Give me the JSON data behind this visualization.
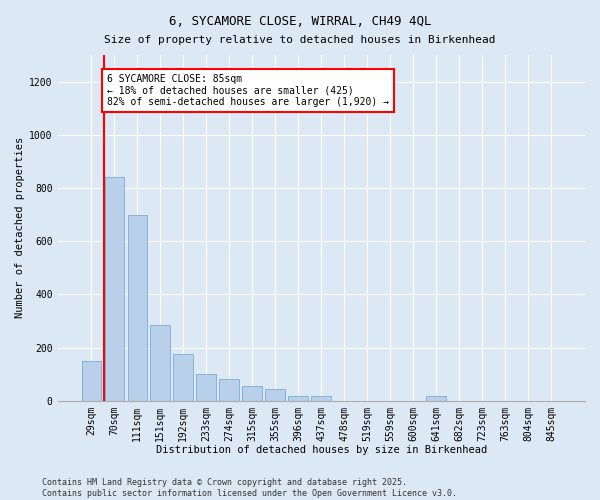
{
  "title": "6, SYCAMORE CLOSE, WIRRAL, CH49 4QL",
  "subtitle": "Size of property relative to detached houses in Birkenhead",
  "xlabel": "Distribution of detached houses by size in Birkenhead",
  "ylabel": "Number of detached properties",
  "categories": [
    "29sqm",
    "70sqm",
    "111sqm",
    "151sqm",
    "192sqm",
    "233sqm",
    "274sqm",
    "315sqm",
    "355sqm",
    "396sqm",
    "437sqm",
    "478sqm",
    "519sqm",
    "559sqm",
    "600sqm",
    "641sqm",
    "682sqm",
    "723sqm",
    "763sqm",
    "804sqm",
    "845sqm"
  ],
  "values": [
    150,
    840,
    700,
    285,
    175,
    100,
    80,
    55,
    45,
    18,
    18,
    0,
    0,
    0,
    0,
    18,
    0,
    0,
    0,
    0,
    0
  ],
  "bar_color": "#b8d0ea",
  "bar_edgecolor": "#7aadd4",
  "vline_color": "red",
  "vline_x": 0.57,
  "annotation_text": "6 SYCAMORE CLOSE: 85sqm\n← 18% of detached houses are smaller (425)\n82% of semi-detached houses are larger (1,920) →",
  "annotation_box_edgecolor": "red",
  "annotation_box_facecolor": "white",
  "ylim": [
    0,
    1300
  ],
  "yticks": [
    0,
    200,
    400,
    600,
    800,
    1000,
    1200
  ],
  "footer": "Contains HM Land Registry data © Crown copyright and database right 2025.\nContains public sector information licensed under the Open Government Licence v3.0.",
  "bg_color": "#dde8f5",
  "plot_bg_color": "#dde8f5",
  "grid_color": "#ffffff",
  "title_fontsize": 9,
  "subtitle_fontsize": 8,
  "axis_label_fontsize": 7.5,
  "tick_fontsize": 7,
  "annotation_fontsize": 7
}
